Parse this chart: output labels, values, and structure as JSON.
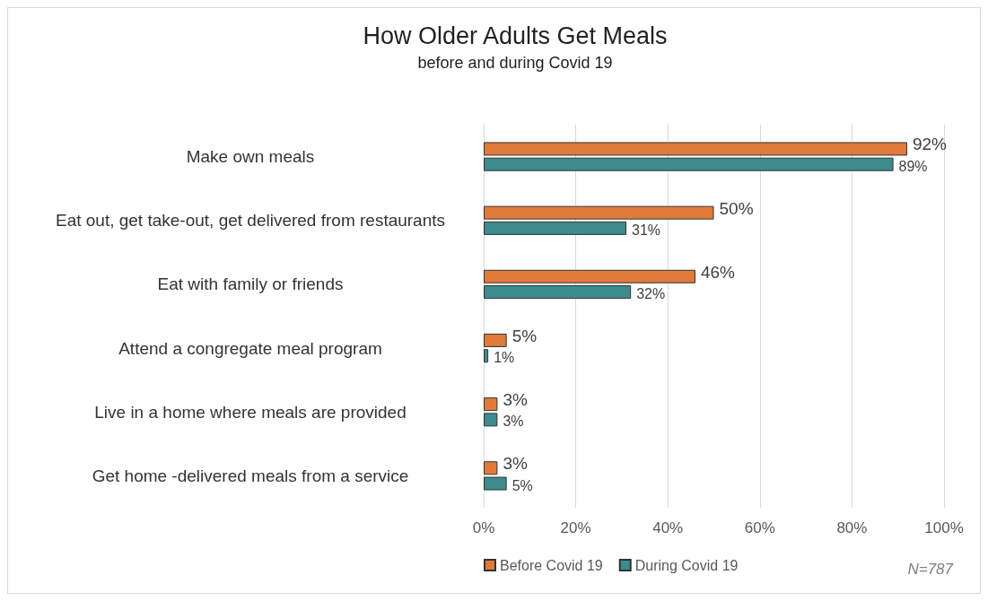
{
  "chart_data": {
    "type": "bar",
    "orientation": "horizontal",
    "title": "How Older Adults Get Meals",
    "subtitle": "before and during Covid 19",
    "categories": [
      "Make own meals",
      "Eat out, get take-out, get delivered from restaurants",
      "Eat with family or friends",
      "Attend a congregate meal program",
      "Live in a home where meals are provided",
      "Get home -delivered meals from a service"
    ],
    "series": [
      {
        "name": "Before Covid 19",
        "color": "#e07b39",
        "values": [
          92,
          50,
          46,
          5,
          3,
          3
        ],
        "value_labels": [
          "92%",
          "50%",
          "46%",
          "5%",
          "3%",
          "3%"
        ]
      },
      {
        "name": "During Covid 19",
        "color": "#3d8b8b",
        "values": [
          89,
          31,
          32,
          1,
          3,
          5
        ],
        "value_labels": [
          "89%",
          "31%",
          "32%",
          "1%",
          "3%",
          "5%"
        ]
      }
    ],
    "xlim": [
      0,
      100
    ],
    "xticks": [
      {
        "value": 0,
        "label": "0%"
      },
      {
        "value": 20,
        "label": "20%"
      },
      {
        "value": 40,
        "label": "40%"
      },
      {
        "value": 60,
        "label": "60%"
      },
      {
        "value": 80,
        "label": "80%"
      },
      {
        "value": 100,
        "label": "100%"
      }
    ],
    "grid": "x",
    "legend": "bottom left",
    "annotations": [
      "N=787"
    ]
  }
}
